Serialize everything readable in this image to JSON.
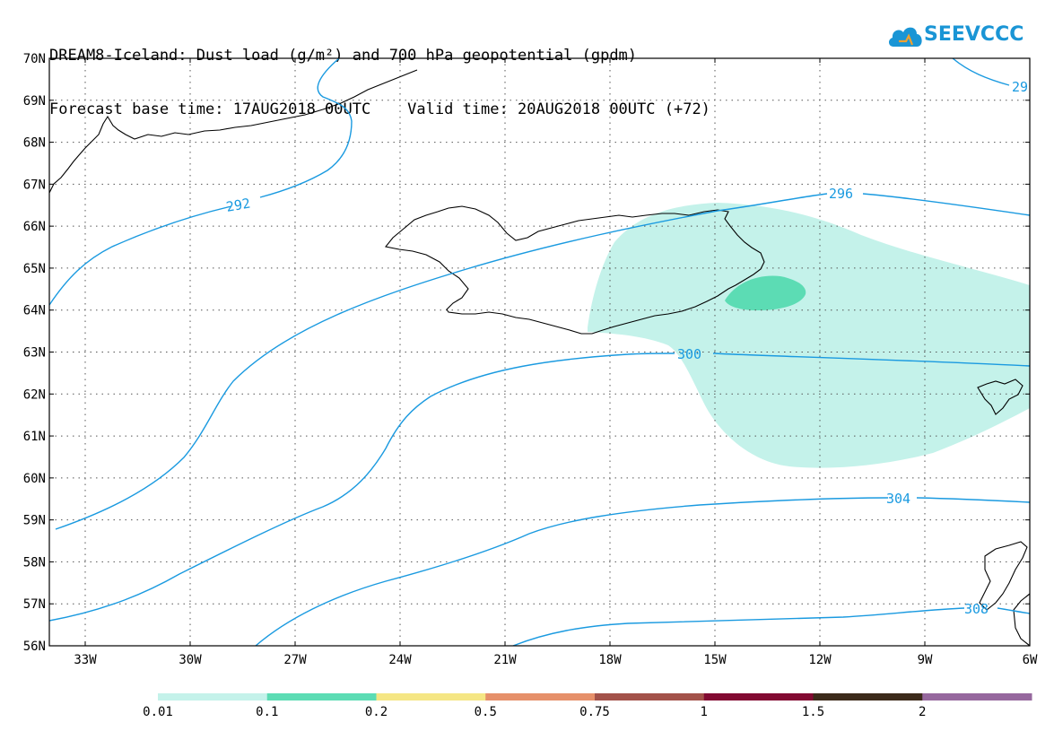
{
  "header": {
    "line1": "DREAM8-Iceland: Dust load (g/m²) and 700 hPa geopotential (gpdm)",
    "line2": "Forecast base time: 17AUG2018 00UTC    Valid time: 20AUG2018 00UTC (+72)"
  },
  "logo": {
    "text": "SEEVCCC",
    "icon": "cloud-icon",
    "color": "#1a95d5"
  },
  "map": {
    "lat_labels": [
      "70N",
      "69N",
      "68N",
      "67N",
      "66N",
      "65N",
      "64N",
      "63N",
      "62N",
      "61N",
      "60N",
      "59N",
      "58N",
      "57N",
      "56N"
    ],
    "lon_labels": [
      "33W",
      "30W",
      "27W",
      "24W",
      "21W",
      "18W",
      "15W",
      "12W",
      "9W",
      "6W"
    ],
    "contour_color": "#1a9ae0",
    "contour_labels": [
      "292",
      "296",
      "300",
      "304",
      "308",
      "29"
    ]
  },
  "colorbar": {
    "colors": [
      "#c4f2ea",
      "#5cdcb4",
      "#f5e684",
      "#e6906a",
      "#a3524a",
      "#820a32",
      "#3c2a1a",
      "#96689e"
    ],
    "labels": [
      "0.01",
      "0.1",
      "0.2",
      "0.5",
      "0.75",
      "1",
      "1.5",
      "2"
    ]
  }
}
